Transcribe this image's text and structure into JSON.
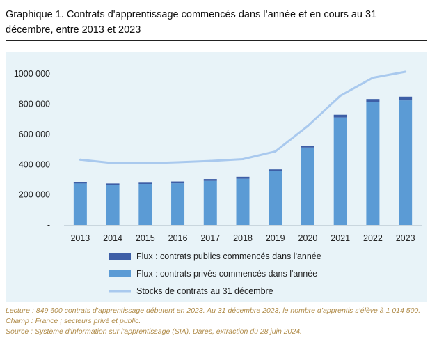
{
  "title": "Graphique 1. Contrats d'apprentissage commencés dans l’année et en cours au 31 décembre, entre 2013 et 2023",
  "colors": {
    "public": "#3d5ea6",
    "private": "#5b9bd5",
    "stock": "#a9c9ee",
    "panel": "#e8f3f8",
    "footnote": "#b08c4a"
  },
  "chart_data": {
    "type": "bar",
    "stacked": true,
    "categories": [
      "2013",
      "2014",
      "2015",
      "2016",
      "2017",
      "2018",
      "2019",
      "2020",
      "2021",
      "2022",
      "2023"
    ],
    "ylim": [
      0,
      1100000
    ],
    "yticks": [
      0,
      200000,
      400000,
      600000,
      800000,
      1000000
    ],
    "ytick_labels": [
      "-",
      "200 000",
      "400 000",
      "600 000",
      "800 000",
      "1000 000"
    ],
    "grid": false,
    "legend_position": "bottom",
    "series": [
      {
        "name": "Flux : contrats publics commencés dans l'année",
        "kind": "bar",
        "values": [
          8000,
          8000,
          8000,
          12000,
          12000,
          13000,
          12000,
          12000,
          18000,
          20000,
          24600
        ]
      },
      {
        "name": "Flux : contrats privés commencés dans l'année",
        "kind": "bar",
        "values": [
          275000,
          267000,
          272000,
          276000,
          292000,
          306000,
          356000,
          513000,
          712000,
          814000,
          825000
        ]
      },
      {
        "name": "Stocks de contrats au 31 décembre",
        "kind": "line",
        "values": [
          432000,
          409000,
          408000,
          415000,
          424000,
          436000,
          487000,
          656000,
          856000,
          975000,
          1014500
        ]
      }
    ]
  },
  "footnotes": {
    "lecture": "Lecture : 849 600 contrats d’apprentissage débutent en 2023. Au 31 décembre 2023, le nombre d’apprentis s’élève à 1 014 500.",
    "champ": "Champ : France ; secteurs privé et public.",
    "source": "Source : Système d'information sur l'apprentissage (SIA), Dares, extraction du 28 juin 2024."
  }
}
